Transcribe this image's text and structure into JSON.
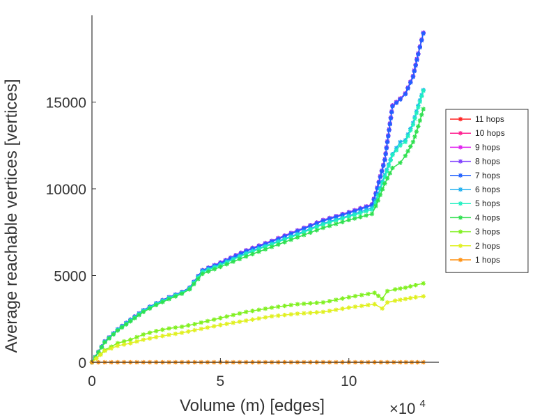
{
  "chart_data": {
    "type": "line",
    "title": "",
    "xlabel": "Volume (m) [edges]",
    "ylabel": "Average reachable vertices [vertices]",
    "x_multiplier": "×10",
    "x_multiplier_exp": "4",
    "xlim": [
      0,
      13
    ],
    "ylim": [
      0,
      20000
    ],
    "xticks": [
      0,
      5,
      10
    ],
    "xtick_labels": [
      "0",
      "5",
      "10"
    ],
    "yticks": [
      0,
      5000,
      10000,
      15000
    ],
    "ytick_labels": [
      "0",
      "5000",
      "10000",
      "15000"
    ],
    "legend_position": "right",
    "series": [
      {
        "name": "11 hops",
        "color": "#ff2020",
        "x": [
          0,
          0.5,
          1,
          1.5,
          2,
          2.5,
          3,
          3.5,
          3.8,
          4.3,
          5,
          6,
          7,
          8,
          9,
          10,
          10.9,
          11.05,
          11.4,
          11.7,
          12,
          12.2,
          12.5,
          12.7,
          12.9
        ],
        "y": [
          0,
          1200,
          1900,
          2450,
          3000,
          3400,
          3750,
          4050,
          4300,
          5300,
          5750,
          6450,
          7000,
          7600,
          8200,
          8650,
          9100,
          9750,
          11700,
          14800,
          15200,
          15500,
          16500,
          17800,
          19000
        ]
      },
      {
        "name": "10 hops",
        "color": "#ff2090",
        "x": [
          0,
          0.5,
          1,
          1.5,
          2,
          2.5,
          3,
          3.5,
          3.8,
          4.3,
          5,
          6,
          7,
          8,
          9,
          10,
          10.9,
          11.05,
          11.4,
          11.7,
          12,
          12.2,
          12.5,
          12.7,
          12.9
        ],
        "y": [
          0,
          1200,
          1900,
          2450,
          3000,
          3400,
          3750,
          4050,
          4300,
          5300,
          5750,
          6450,
          7000,
          7600,
          8200,
          8650,
          9100,
          9750,
          11700,
          14800,
          15200,
          15500,
          16500,
          17800,
          19000
        ]
      },
      {
        "name": "9 hops",
        "color": "#e020f0",
        "x": [
          0,
          0.5,
          1,
          1.5,
          2,
          2.5,
          3,
          3.5,
          3.8,
          4.3,
          5,
          6,
          7,
          8,
          9,
          10,
          10.9,
          11.05,
          11.4,
          11.7,
          12,
          12.2,
          12.5,
          12.7,
          12.9
        ],
        "y": [
          0,
          1200,
          1900,
          2450,
          3000,
          3400,
          3750,
          4050,
          4300,
          5300,
          5750,
          6450,
          7000,
          7600,
          8200,
          8650,
          9100,
          9750,
          11700,
          14800,
          15200,
          15500,
          16500,
          17800,
          19000
        ]
      },
      {
        "name": "8 hops",
        "color": "#8040ff",
        "x": [
          0,
          0.5,
          1,
          1.5,
          2,
          2.5,
          3,
          3.5,
          3.8,
          4.3,
          5,
          6,
          7,
          8,
          9,
          10,
          10.9,
          11.05,
          11.4,
          11.7,
          12,
          12.2,
          12.5,
          12.7,
          12.9
        ],
        "y": [
          0,
          1200,
          1900,
          2450,
          3000,
          3400,
          3750,
          4050,
          4300,
          5300,
          5750,
          6450,
          7000,
          7600,
          8200,
          8650,
          9100,
          9750,
          11700,
          14800,
          15200,
          15500,
          16500,
          17800,
          19000
        ]
      },
      {
        "name": "7 hops",
        "color": "#2060ff",
        "x": [
          0,
          0.5,
          1,
          1.5,
          2,
          2.5,
          3,
          3.5,
          3.8,
          4.3,
          5,
          6,
          7,
          8,
          9,
          10,
          10.9,
          11.05,
          11.4,
          11.7,
          12,
          12.2,
          12.5,
          12.7,
          12.9
        ],
        "y": [
          0,
          1200,
          1900,
          2450,
          3000,
          3400,
          3750,
          4050,
          4300,
          5300,
          5700,
          6400,
          6950,
          7550,
          8150,
          8600,
          9050,
          9700,
          11650,
          14750,
          15150,
          15450,
          16450,
          17750,
          18950
        ]
      },
      {
        "name": "6 hops",
        "color": "#20b0f0",
        "x": [
          0,
          0.5,
          1,
          1.5,
          2,
          2.5,
          3,
          3.5,
          3.8,
          4.3,
          5,
          6,
          7,
          8,
          9,
          10,
          10.9,
          11.05,
          11.4,
          11.7,
          12,
          12.2,
          12.5,
          12.7,
          12.9
        ],
        "y": [
          0,
          1180,
          1880,
          2420,
          2970,
          3380,
          3720,
          4020,
          4270,
          5250,
          5650,
          6300,
          6850,
          7400,
          8000,
          8450,
          8900,
          9300,
          10800,
          12000,
          12700,
          12800,
          13800,
          14800,
          15700
        ]
      },
      {
        "name": "5 hops",
        "color": "#20f0c0",
        "x": [
          0,
          0.5,
          1,
          1.5,
          2,
          2.5,
          3,
          3.5,
          3.8,
          4.3,
          5,
          6,
          7,
          8,
          9,
          10,
          10.9,
          11.05,
          11.4,
          11.7,
          12,
          12.2,
          12.5,
          12.7,
          12.9
        ],
        "y": [
          0,
          1170,
          1860,
          2400,
          2950,
          3360,
          3700,
          4000,
          4250,
          5200,
          5600,
          6250,
          6800,
          7350,
          7950,
          8400,
          8800,
          9200,
          10700,
          11950,
          12500,
          12700,
          13700,
          14700,
          15650
        ]
      },
      {
        "name": "4 hops",
        "color": "#30e050",
        "x": [
          0,
          0.5,
          1,
          1.5,
          2,
          2.5,
          3,
          3.5,
          3.8,
          4.3,
          5,
          6,
          7,
          8,
          9,
          10,
          10.9,
          11.05,
          11.4,
          11.7,
          12,
          12.2,
          12.5,
          12.7,
          12.9
        ],
        "y": [
          0,
          1150,
          1830,
          2360,
          2900,
          3300,
          3640,
          3950,
          4200,
          5100,
          5500,
          6100,
          6650,
          7200,
          7750,
          8200,
          8550,
          9000,
          10300,
          11200,
          11500,
          11900,
          12700,
          13600,
          14600
        ]
      },
      {
        "name": "3 hops",
        "color": "#80f020",
        "x": [
          0,
          0.5,
          1,
          1.5,
          2,
          2.5,
          3,
          3.5,
          4,
          5,
          6,
          7,
          8,
          9,
          10,
          11,
          11.3,
          11.5,
          11.8,
          12.2,
          12.6,
          12.9
        ],
        "y": [
          0,
          700,
          1100,
          1300,
          1600,
          1800,
          1950,
          2050,
          2200,
          2550,
          2900,
          3150,
          3350,
          3450,
          3750,
          4000,
          3650,
          4100,
          4200,
          4300,
          4450,
          4550
        ]
      },
      {
        "name": "2 hops",
        "color": "#e0f020",
        "x": [
          0,
          0.5,
          1,
          1.5,
          2,
          2.5,
          3,
          3.5,
          4,
          5,
          6,
          7,
          8,
          9,
          10,
          11,
          11.3,
          11.5,
          11.8,
          12.2,
          12.6,
          12.9
        ],
        "y": [
          0,
          650,
          950,
          1100,
          1300,
          1450,
          1580,
          1700,
          1850,
          2150,
          2400,
          2650,
          2800,
          2900,
          3150,
          3350,
          3100,
          3450,
          3550,
          3650,
          3750,
          3800
        ]
      },
      {
        "name": "1 hops",
        "color": "#ff9010",
        "x": [
          0,
          1,
          2,
          3,
          4,
          5,
          6,
          7,
          8,
          9,
          10,
          11,
          12,
          12.9
        ],
        "y": [
          0,
          0,
          0,
          0,
          0,
          0,
          0,
          0,
          0,
          0,
          0,
          0,
          0,
          0
        ]
      }
    ]
  }
}
